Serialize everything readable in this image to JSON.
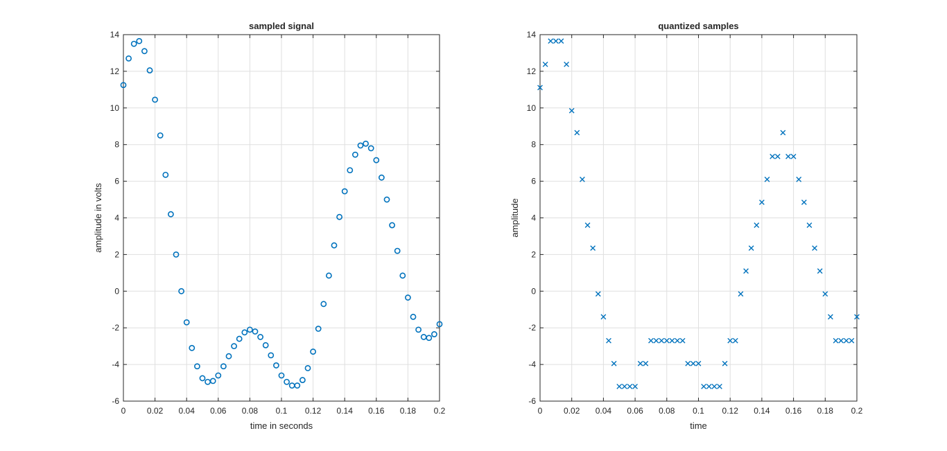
{
  "chart_data": [
    {
      "type": "scatter",
      "title": "sampled signal",
      "xlabel": "time in seconds",
      "ylabel": "amplitude in volts",
      "xlim": [
        0,
        0.2
      ],
      "ylim": [
        -6,
        14
      ],
      "xticks": [
        "0",
        "0.02",
        "0.04",
        "0.06",
        "0.08",
        "0.1",
        "0.12",
        "0.14",
        "0.16",
        "0.18",
        "0.2"
      ],
      "yticks": [
        "-6",
        "-4",
        "-2",
        "0",
        "2",
        "4",
        "6",
        "8",
        "10",
        "12",
        "14"
      ],
      "marker": "circle",
      "color": "#0072BD",
      "grid": true,
      "x": [
        0,
        0.00333,
        0.00667,
        0.01,
        0.01333,
        0.01667,
        0.02,
        0.02333,
        0.02667,
        0.03,
        0.03333,
        0.03667,
        0.04,
        0.04333,
        0.04667,
        0.05,
        0.05333,
        0.05667,
        0.06,
        0.06333,
        0.06667,
        0.07,
        0.07333,
        0.07667,
        0.08,
        0.08333,
        0.08667,
        0.09,
        0.09333,
        0.09667,
        0.1,
        0.10333,
        0.10667,
        0.11,
        0.11333,
        0.11667,
        0.12,
        0.12333,
        0.12667,
        0.13,
        0.13333,
        0.13667,
        0.14,
        0.14333,
        0.14667,
        0.15,
        0.15333,
        0.15667,
        0.16,
        0.16333,
        0.16667,
        0.17,
        0.17333,
        0.17667,
        0.18,
        0.18333,
        0.18667,
        0.19,
        0.19333,
        0.19667,
        0.2
      ],
      "y": [
        11.25,
        12.7,
        13.5,
        13.65,
        13.1,
        12.05,
        10.45,
        8.5,
        6.35,
        4.2,
        2.0,
        0.0,
        -1.7,
        -3.1,
        -4.1,
        -4.75,
        -4.95,
        -4.9,
        -4.6,
        -4.1,
        -3.55,
        -3.0,
        -2.6,
        -2.25,
        -2.1,
        -2.2,
        -2.5,
        -2.95,
        -3.5,
        -4.05,
        -4.6,
        -4.95,
        -5.15,
        -5.15,
        -4.85,
        -4.2,
        -3.3,
        -2.05,
        -0.7,
        0.85,
        2.5,
        4.05,
        5.45,
        6.6,
        7.45,
        7.95,
        8.05,
        7.8,
        7.15,
        6.2,
        5.0,
        3.6,
        2.2,
        0.85,
        -0.35,
        -1.4,
        -2.1,
        -2.5,
        -2.55,
        -2.35,
        -1.8
      ]
    },
    {
      "type": "scatter",
      "title": "quantized samples",
      "xlabel": "time",
      "ylabel": "amplitude",
      "xlim": [
        0,
        0.2
      ],
      "ylim": [
        -6,
        14
      ],
      "xticks": [
        "0",
        "0.02",
        "0.04",
        "0.06",
        "0.08",
        "0.1",
        "0.12",
        "0.14",
        "0.16",
        "0.18",
        "0.2"
      ],
      "yticks": [
        "-6",
        "-4",
        "-2",
        "0",
        "2",
        "4",
        "6",
        "8",
        "10",
        "12",
        "14"
      ],
      "marker": "x",
      "color": "#0072BD",
      "grid": true,
      "x": [
        0,
        0.00333,
        0.00667,
        0.01,
        0.01333,
        0.01667,
        0.02,
        0.02333,
        0.02667,
        0.03,
        0.03333,
        0.03667,
        0.04,
        0.04333,
        0.04667,
        0.05,
        0.05333,
        0.05667,
        0.06,
        0.06333,
        0.06667,
        0.07,
        0.07333,
        0.07667,
        0.08,
        0.08333,
        0.08667,
        0.09,
        0.09333,
        0.09667,
        0.1,
        0.10333,
        0.10667,
        0.11,
        0.11333,
        0.11667,
        0.12,
        0.12333,
        0.12667,
        0.13,
        0.13333,
        0.13667,
        0.14,
        0.14333,
        0.14667,
        0.15,
        0.15333,
        0.15667,
        0.16,
        0.16333,
        0.16667,
        0.17,
        0.17333,
        0.17667,
        0.18,
        0.18333,
        0.18667,
        0.19,
        0.19333,
        0.19667,
        0.2
      ],
      "y": [
        11.11,
        12.38,
        13.65,
        13.65,
        13.65,
        12.38,
        9.85,
        8.65,
        6.1,
        3.6,
        2.35,
        -0.15,
        -1.4,
        -2.7,
        -3.95,
        -5.2,
        -5.2,
        -5.2,
        -5.2,
        -3.95,
        -3.95,
        -2.7,
        -2.7,
        -2.7,
        -2.7,
        -2.7,
        -2.7,
        -2.7,
        -3.95,
        -3.95,
        -3.95,
        -5.2,
        -5.2,
        -5.2,
        -5.2,
        -3.95,
        -2.7,
        -2.7,
        -0.15,
        1.1,
        2.35,
        3.6,
        4.85,
        6.1,
        7.35,
        7.35,
        8.65,
        7.35,
        7.35,
        6.1,
        4.85,
        3.6,
        2.35,
        1.1,
        -0.15,
        -1.4,
        -2.7,
        -2.7,
        -2.7,
        -2.7,
        -1.4
      ]
    }
  ]
}
